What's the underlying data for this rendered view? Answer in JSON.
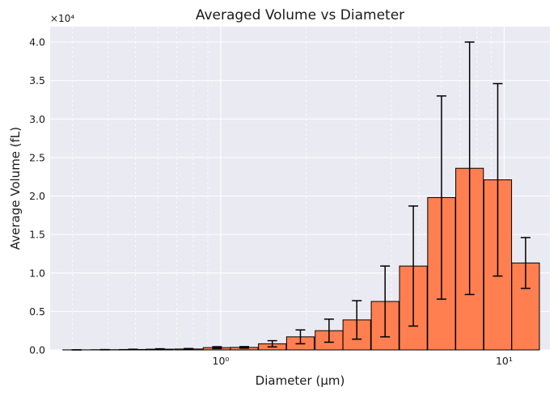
{
  "chart_data": {
    "type": "bar",
    "title": "Averaged Volume vs Diameter",
    "xlabel": "Diameter (μm)",
    "ylabel": "Average Volume (fL)",
    "xscale": "log",
    "y_offset_text": "×10⁴",
    "xlim": [
      0.25,
      14.5
    ],
    "ylim": [
      0,
      42000
    ],
    "grid": true,
    "legend": "none",
    "x_ticks": [
      {
        "value": 1,
        "label": "10⁰"
      },
      {
        "value": 10,
        "label": "10¹"
      }
    ],
    "y_ticks": [
      {
        "value": 0,
        "label": "0.0"
      },
      {
        "value": 5000,
        "label": "0.5"
      },
      {
        "value": 10000,
        "label": "1.0"
      },
      {
        "value": 15000,
        "label": "1.5"
      },
      {
        "value": 20000,
        "label": "2.0"
      },
      {
        "value": 25000,
        "label": "2.5"
      },
      {
        "value": 30000,
        "label": "3.0"
      },
      {
        "value": 35000,
        "label": "3.5"
      },
      {
        "value": 40000,
        "label": "4.0"
      }
    ],
    "series": [
      {
        "x": [
          0.31,
          0.39,
          0.49,
          0.61,
          0.77,
          0.97,
          1.21,
          1.52,
          1.91,
          2.41,
          3.02,
          3.8,
          4.78,
          6.01,
          7.55,
          9.49,
          11.9
        ],
        "values": [
          10,
          30,
          60,
          100,
          120,
          300,
          330,
          800,
          1700,
          2500,
          3900,
          6300,
          10900,
          19800,
          23600,
          22100,
          11300
        ],
        "error": [
          5,
          15,
          30,
          50,
          60,
          120,
          100,
          400,
          900,
          1500,
          2500,
          4600,
          7800,
          13200,
          16400,
          12500,
          3300
        ]
      }
    ],
    "colors": {
      "bar": "#ff7f50",
      "edge": "#000000",
      "errorbar": "#000000",
      "background": "#eaeaf2",
      "grid": "#ffffff"
    }
  }
}
